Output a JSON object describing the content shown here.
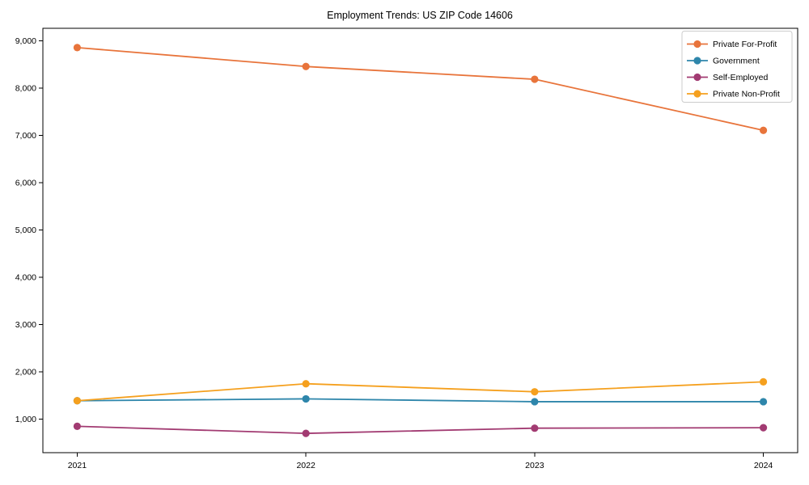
{
  "title": "Employment Trends: US ZIP Code 14606",
  "chart_data": {
    "type": "line",
    "title": "Employment Trends: US ZIP Code 14606",
    "xlabel": "",
    "ylabel": "",
    "x": [
      2021,
      2022,
      2023,
      2024
    ],
    "x_tick_labels": [
      "2021",
      "2022",
      "2023",
      "2024"
    ],
    "y_ticks": [
      {
        "value": 1000,
        "label": "1,000"
      },
      {
        "value": 2000,
        "label": "2,000"
      },
      {
        "value": 3000,
        "label": "3,000"
      },
      {
        "value": 4000,
        "label": "4,000"
      },
      {
        "value": 5000,
        "label": "5,000"
      },
      {
        "value": 6000,
        "label": "6,000"
      },
      {
        "value": 7000,
        "label": "7,000"
      },
      {
        "value": 8000,
        "label": "8,000"
      },
      {
        "value": 9000,
        "label": "9,000"
      }
    ],
    "ylim": [
      292,
      9268
    ],
    "grid": false,
    "legend_position": "upper right",
    "series": [
      {
        "name": "Private For-Profit",
        "color": "#E8743B",
        "values": [
          8860,
          8460,
          8190,
          7110
        ]
      },
      {
        "name": "Government",
        "color": "#2E86AB",
        "values": [
          1390,
          1430,
          1370,
          1370
        ]
      },
      {
        "name": "Self-Employed",
        "color": "#A23B72",
        "values": [
          850,
          700,
          810,
          820
        ]
      },
      {
        "name": "Private Non-Profit",
        "color": "#F5A01E",
        "values": [
          1390,
          1750,
          1580,
          1790
        ]
      }
    ],
    "style": {
      "spine_color": "#000000",
      "background": "#ffffff",
      "legend_border_color": "#cccccc",
      "marker_radius": 4.6,
      "line_width": 1.8
    }
  }
}
